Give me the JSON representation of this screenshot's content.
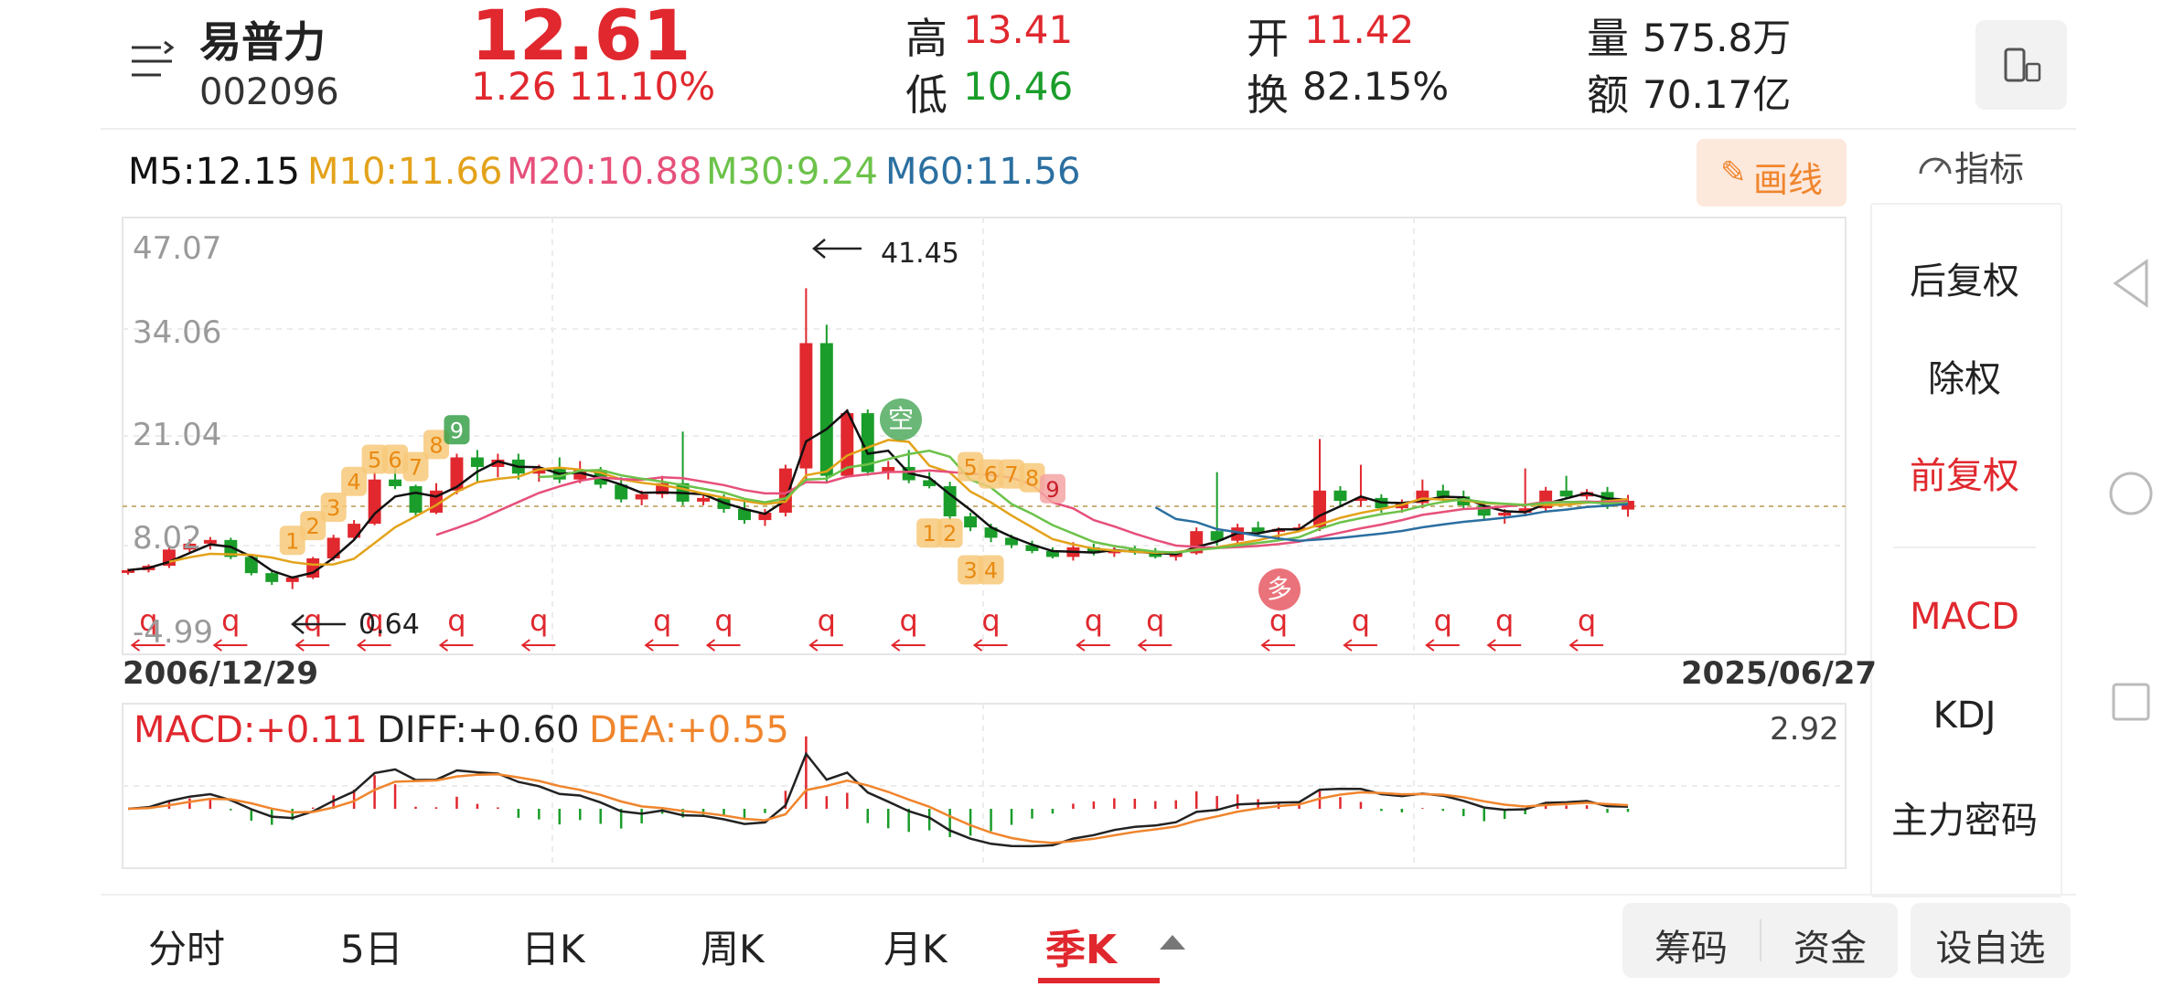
{
  "stock": {
    "name": "易普力",
    "code": "002096",
    "price": "12.61",
    "change": "1.26",
    "change_pct": "11.10%",
    "high_label": "高",
    "high": "13.41",
    "low_label": "低",
    "low": "10.46",
    "open_label": "开",
    "open": "11.42",
    "turnover_label": "换",
    "turnover": "82.15%",
    "volume_label": "量",
    "volume": "575.8万",
    "amount_label": "额",
    "amount": "70.17亿"
  },
  "ma": {
    "m5": "M5:12.15",
    "m10": "M10:11.66",
    "m20": "M20:10.88",
    "m30": "M30:9.24",
    "m60": "M60:11.56"
  },
  "toolbar": {
    "draw_label": "画线",
    "indicator_label": "指标"
  },
  "side_menu": {
    "items": [
      "后复权",
      "除权",
      "前复权",
      "MACD",
      "KDJ",
      "主力密码"
    ]
  },
  "chart": {
    "y_ticks": [
      "47.07",
      "34.06",
      "21.04",
      "8.02",
      "-4.99"
    ],
    "date_start": "2006/12/29",
    "date_end": "2025/06/27",
    "max_annotation": "41.45",
    "min_annotation": "0.64",
    "q_marker": "q",
    "sell_signal": "空",
    "buy_signal": "多",
    "td_up": [
      "1",
      "2",
      "3",
      "4",
      "5",
      "6",
      "7",
      "8",
      "9"
    ],
    "td_down": [
      "1",
      "2",
      "3",
      "4",
      "5",
      "6",
      "7",
      "8",
      "9"
    ]
  },
  "macd": {
    "macd": "MACD:+0.11",
    "diff": "DIFF:+0.60",
    "dea": "DEA:+0.55",
    "scale": "2.92"
  },
  "bottom_tabs": [
    "分时",
    "5日",
    "日K",
    "周K",
    "月K",
    "季K"
  ],
  "bottom_buttons": {
    "chips": "筹码",
    "funds": "资金",
    "watchlist": "设自选"
  },
  "colors": {
    "up": "#e0282e",
    "down": "#1a9d2a",
    "m10": "#e3a21a",
    "m20": "#e6507a",
    "m30": "#6cc24a",
    "m60": "#2b6fa0",
    "accent_orange": "#f0852d"
  },
  "chart_data": {
    "type": "candlestick",
    "title": "",
    "period": "quarterly",
    "ylim": [
      -4.99,
      47.07
    ],
    "y_ticks": [
      47.07,
      34.06,
      21.04,
      8.02,
      -4.99
    ],
    "x_range": [
      "2006/12/29",
      "2025/06/27"
    ],
    "candles": [
      {
        "o": 3.0,
        "h": 3.4,
        "l": 2.6,
        "c": 3.2
      },
      {
        "o": 3.2,
        "h": 4.0,
        "l": 2.9,
        "c": 3.8
      },
      {
        "o": 3.8,
        "h": 6.5,
        "l": 3.5,
        "c": 6.0
      },
      {
        "o": 6.0,
        "h": 7.4,
        "l": 5.5,
        "c": 6.8
      },
      {
        "o": 6.8,
        "h": 7.7,
        "l": 6.0,
        "c": 7.3
      },
      {
        "o": 7.3,
        "h": 7.6,
        "l": 4.7,
        "c": 5.0
      },
      {
        "o": 5.0,
        "h": 5.2,
        "l": 2.5,
        "c": 2.8
      },
      {
        "o": 2.8,
        "h": 3.1,
        "l": 1.2,
        "c": 1.6
      },
      {
        "o": 1.6,
        "h": 2.4,
        "l": 0.64,
        "c": 2.2
      },
      {
        "o": 2.2,
        "h": 5.0,
        "l": 2.0,
        "c": 4.8
      },
      {
        "o": 4.8,
        "h": 8.0,
        "l": 4.5,
        "c": 7.6
      },
      {
        "o": 7.6,
        "h": 10.0,
        "l": 7.2,
        "c": 9.5
      },
      {
        "o": 9.5,
        "h": 16.5,
        "l": 9.3,
        "c": 15.5
      },
      {
        "o": 15.5,
        "h": 17.0,
        "l": 14.2,
        "c": 14.6
      },
      {
        "o": 14.6,
        "h": 14.8,
        "l": 10.5,
        "c": 11.0
      },
      {
        "o": 11.0,
        "h": 15.0,
        "l": 10.8,
        "c": 14.0
      },
      {
        "o": 14.0,
        "h": 19.0,
        "l": 13.5,
        "c": 18.5
      },
      {
        "o": 18.5,
        "h": 19.5,
        "l": 15.0,
        "c": 17.2
      },
      {
        "o": 17.2,
        "h": 19.0,
        "l": 15.8,
        "c": 18.2
      },
      {
        "o": 18.2,
        "h": 19.0,
        "l": 15.5,
        "c": 16.3
      },
      {
        "o": 16.3,
        "h": 17.5,
        "l": 15.2,
        "c": 17.0
      },
      {
        "o": 17.0,
        "h": 18.5,
        "l": 15.0,
        "c": 15.5
      },
      {
        "o": 15.5,
        "h": 18.0,
        "l": 15.0,
        "c": 16.8
      },
      {
        "o": 16.8,
        "h": 17.2,
        "l": 14.3,
        "c": 14.8
      },
      {
        "o": 14.8,
        "h": 15.8,
        "l": 12.4,
        "c": 12.8
      },
      {
        "o": 12.8,
        "h": 14.0,
        "l": 12.0,
        "c": 13.5
      },
      {
        "o": 13.5,
        "h": 16.0,
        "l": 13.0,
        "c": 15.0
      },
      {
        "o": 15.0,
        "h": 22.0,
        "l": 12.0,
        "c": 12.5
      },
      {
        "o": 12.5,
        "h": 13.5,
        "l": 12.0,
        "c": 13.0
      },
      {
        "o": 13.0,
        "h": 13.5,
        "l": 11.0,
        "c": 11.5
      },
      {
        "o": 11.5,
        "h": 12.5,
        "l": 9.5,
        "c": 10.0
      },
      {
        "o": 10.0,
        "h": 11.5,
        "l": 9.2,
        "c": 11.0
      },
      {
        "o": 11.0,
        "h": 17.5,
        "l": 10.5,
        "c": 17.0
      },
      {
        "o": 17.0,
        "h": 41.45,
        "l": 15.5,
        "c": 34.0
      },
      {
        "o": 34.0,
        "h": 36.5,
        "l": 15.0,
        "c": 16.0
      },
      {
        "o": 16.0,
        "h": 25.0,
        "l": 15.8,
        "c": 24.5
      },
      {
        "o": 24.5,
        "h": 25.0,
        "l": 16.0,
        "c": 16.5
      },
      {
        "o": 16.5,
        "h": 18.0,
        "l": 15.5,
        "c": 17.2
      },
      {
        "o": 17.2,
        "h": 19.5,
        "l": 15.0,
        "c": 15.4
      },
      {
        "o": 15.4,
        "h": 16.5,
        "l": 14.3,
        "c": 14.6
      },
      {
        "o": 14.6,
        "h": 15.2,
        "l": 10.0,
        "c": 10.5
      },
      {
        "o": 10.5,
        "h": 11.0,
        "l": 8.5,
        "c": 9.0
      },
      {
        "o": 9.0,
        "h": 9.5,
        "l": 7.0,
        "c": 7.6
      },
      {
        "o": 7.6,
        "h": 8.0,
        "l": 6.2,
        "c": 6.6
      },
      {
        "o": 6.6,
        "h": 7.2,
        "l": 5.5,
        "c": 5.8
      },
      {
        "o": 5.8,
        "h": 6.3,
        "l": 4.8,
        "c": 5.0
      },
      {
        "o": 5.0,
        "h": 7.0,
        "l": 4.5,
        "c": 6.3
      },
      {
        "o": 6.3,
        "h": 6.8,
        "l": 5.2,
        "c": 5.5
      },
      {
        "o": 5.5,
        "h": 6.3,
        "l": 5.0,
        "c": 6.0
      },
      {
        "o": 6.0,
        "h": 6.5,
        "l": 5.3,
        "c": 5.6
      },
      {
        "o": 5.6,
        "h": 6.2,
        "l": 4.8,
        "c": 5.0
      },
      {
        "o": 5.0,
        "h": 5.8,
        "l": 4.5,
        "c": 5.5
      },
      {
        "o": 5.5,
        "h": 9.0,
        "l": 5.3,
        "c": 8.5
      },
      {
        "o": 8.5,
        "h": 16.5,
        "l": 6.5,
        "c": 7.2
      },
      {
        "o": 7.2,
        "h": 9.5,
        "l": 6.8,
        "c": 9.0
      },
      {
        "o": 9.0,
        "h": 9.8,
        "l": 8.0,
        "c": 8.4
      },
      {
        "o": 8.4,
        "h": 9.0,
        "l": 7.5,
        "c": 8.8
      },
      {
        "o": 8.8,
        "h": 9.5,
        "l": 8.4,
        "c": 9.0
      },
      {
        "o": 9.0,
        "h": 21.0,
        "l": 8.5,
        "c": 14.0
      },
      {
        "o": 14.0,
        "h": 14.6,
        "l": 12.0,
        "c": 12.6
      },
      {
        "o": 12.6,
        "h": 17.5,
        "l": 11.8,
        "c": 13.0
      },
      {
        "o": 13.0,
        "h": 13.5,
        "l": 11.0,
        "c": 11.6
      },
      {
        "o": 11.6,
        "h": 12.8,
        "l": 11.0,
        "c": 12.3
      },
      {
        "o": 12.3,
        "h": 15.5,
        "l": 11.6,
        "c": 14.0
      },
      {
        "o": 14.0,
        "h": 14.8,
        "l": 12.6,
        "c": 13.2
      },
      {
        "o": 13.2,
        "h": 14.0,
        "l": 11.5,
        "c": 12.0
      },
      {
        "o": 12.0,
        "h": 12.6,
        "l": 10.0,
        "c": 10.6
      },
      {
        "o": 10.6,
        "h": 11.5,
        "l": 9.5,
        "c": 11.0
      },
      {
        "o": 11.0,
        "h": 17.0,
        "l": 10.5,
        "c": 11.6
      },
      {
        "o": 11.6,
        "h": 14.5,
        "l": 11.2,
        "c": 14.0
      },
      {
        "o": 14.0,
        "h": 16.0,
        "l": 13.0,
        "c": 13.2
      },
      {
        "o": 13.2,
        "h": 14.2,
        "l": 12.8,
        "c": 13.8
      },
      {
        "o": 13.8,
        "h": 14.5,
        "l": 11.5,
        "c": 11.8
      },
      {
        "o": 11.42,
        "h": 13.41,
        "l": 10.46,
        "c": 12.61
      }
    ],
    "macd": {
      "ylim": [
        -2.92,
        2.92
      ]
    }
  }
}
